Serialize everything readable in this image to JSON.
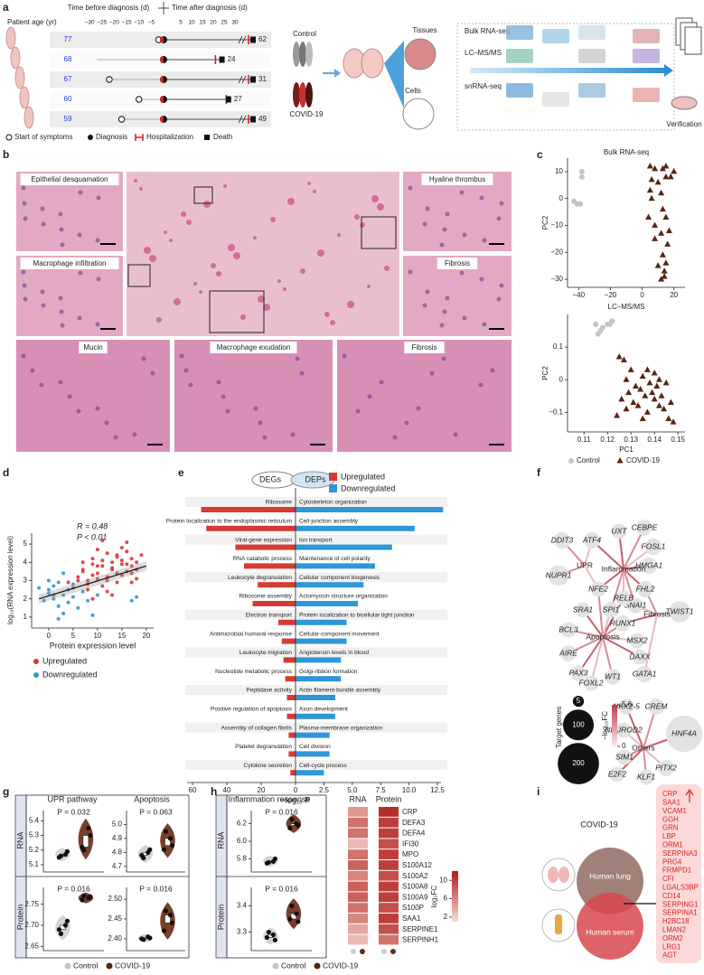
{
  "panel_labels": [
    "a",
    "b",
    "c",
    "d",
    "e",
    "f",
    "g",
    "h",
    "i"
  ],
  "a": {
    "time_before": "Time before diagnosis (d)",
    "time_after": "Time after diagnosis (d)",
    "age_label": "Patient age (yr)",
    "ticks_before": [
      {
        "value": -30,
        "label": "−30"
      },
      {
        "value": -25,
        "label": "−25"
      },
      {
        "value": -20,
        "label": "−20"
      },
      {
        "value": -15,
        "label": "−15"
      },
      {
        "value": -10,
        "label": "−10"
      },
      {
        "value": -5,
        "label": "−5"
      }
    ],
    "ticks_after": [
      5,
      10,
      15,
      20,
      25,
      30
    ],
    "patients": [
      {
        "age": 77,
        "symptom_onset": -2,
        "hospitalization": 60,
        "death": 62
      },
      {
        "age": 68,
        "symptom_onset": null,
        "hospitalization": 21,
        "death": 24
      },
      {
        "age": 67,
        "symptom_onset": -22,
        "hospitalization": 29,
        "death": 31
      },
      {
        "age": 60,
        "symptom_onset": -10,
        "hospitalization": 26,
        "death": 27
      },
      {
        "age": 59,
        "symptom_onset": -17,
        "hospitalization": 47,
        "death": 49
      }
    ],
    "legend": [
      "Start of symptoms",
      "Diagnosis",
      "Hospitalization",
      "Death"
    ],
    "groups": [
      "Control",
      "COVID-19"
    ],
    "samples": [
      "Tissues",
      "Cells"
    ],
    "methods": [
      "Bulk RNA-seq",
      "LC–MS/MS",
      "snRNA-seq"
    ],
    "verification": "Verification"
  },
  "b": {
    "labels": [
      "Epithelial desquamation",
      "Macrophage infiltration",
      "Hyaline thrombus",
      "Fibrosis",
      "Mucin",
      "Macrophage exudation",
      "Fibrosis"
    ]
  },
  "c": {
    "legend": [
      {
        "name": "Control",
        "color": "#c4c4c4"
      },
      {
        "name": "COVID-19",
        "color": "#5a2414"
      }
    ],
    "plots": [
      {
        "type": "scatter",
        "title": "Bulk RNA-seq",
        "ylabel": "PC2",
        "xlim": [
          -47,
          27
        ],
        "ylim": [
          -33,
          15
        ],
        "xticks": [
          {
            "value": -40,
            "label": "−40"
          },
          {
            "value": -20,
            "label": "−20"
          },
          0,
          20
        ],
        "yticks": [
          {
            "value": -30,
            "label": "−30"
          },
          {
            "value": -20,
            "label": "−20"
          },
          {
            "value": -10,
            "label": "−10"
          },
          0,
          10
        ],
        "control": {
          "x": [
            -38,
            -38,
            -43,
            -41,
            -39
          ],
          "values": [
            10,
            8,
            -1,
            -2,
            -2
          ]
        },
        "covid": {
          "x": [
            5,
            8,
            13,
            15,
            20,
            6,
            10,
            15,
            18,
            5,
            6,
            12,
            13,
            4,
            8,
            15,
            17,
            8,
            12,
            16,
            13,
            15,
            10,
            14,
            14,
            12
          ],
          "values": [
            12,
            11,
            11,
            8,
            10,
            7,
            6,
            12,
            8,
            3,
            0,
            2,
            -4,
            -7,
            -10,
            -7,
            -12,
            -15,
            -13,
            -17,
            -21,
            -24,
            -25,
            -27,
            -29,
            -30
          ]
        }
      },
      {
        "type": "scatter",
        "title": "LC–MS/MS",
        "xlabel": "PC1",
        "ylabel": "PC2",
        "xlim": [
          0.103,
          0.153
        ],
        "ylim": [
          -0.16,
          0.2
        ],
        "xticks": [
          0.11,
          0.12,
          0.13,
          0.14,
          0.15
        ],
        "yticks": [
          {
            "value": -0.1,
            "label": "−0.1"
          },
          0,
          0.1
        ],
        "control": {
          "x": [
            0.115,
            0.118,
            0.12,
            0.122,
            0.117,
            0.121,
            0.116
          ],
          "values": [
            0.17,
            0.16,
            0.17,
            0.18,
            0.15,
            0.17,
            0.14
          ]
        },
        "covid": {
          "x": [
            0.125,
            0.127,
            0.13,
            0.128,
            0.132,
            0.135,
            0.137,
            0.14,
            0.142,
            0.138,
            0.134,
            0.129,
            0.126,
            0.131,
            0.136,
            0.139,
            0.141,
            0.143,
            0.145,
            0.147,
            0.133,
            0.137,
            0.14,
            0.144,
            0.146,
            0.128,
            0.124,
            0.135,
            0.142,
            0.148
          ],
          "values": [
            0.07,
            0.06,
            0.03,
            0.0,
            -0.02,
            0.01,
            0.03,
            0.02,
            0.0,
            -0.01,
            -0.03,
            -0.04,
            -0.06,
            -0.07,
            -0.05,
            -0.04,
            -0.02,
            -0.05,
            -0.01,
            -0.07,
            -0.08,
            -0.1,
            -0.06,
            -0.09,
            -0.12,
            -0.09,
            -0.11,
            -0.12,
            -0.08,
            -0.13
          ]
        }
      }
    ]
  },
  "d": {
    "type": "scatter",
    "xlabel": "Protein expression level",
    "ylabel": "log₁₀(RNA expression level)",
    "r_text": "R = 0.48",
    "p_text": "P < 0.01",
    "xlim": [
      -3.5,
      21.5
    ],
    "ylim": [
      0.4,
      5.6
    ],
    "xticks": [
      0,
      5,
      10,
      15,
      20
    ],
    "yticks": [
      1,
      2,
      3,
      4,
      5
    ],
    "fit": {
      "x": [
        -2,
        20
      ],
      "values": [
        2.0,
        3.8
      ]
    },
    "series": [
      {
        "name": "Upregulated",
        "color": "#d73a35",
        "x": [
          6,
          7,
          8,
          9,
          10,
          11,
          12,
          13,
          14,
          15,
          16,
          17,
          18,
          8,
          9,
          10,
          11,
          12,
          13,
          14,
          15,
          16,
          17,
          5,
          6,
          7,
          9,
          10,
          11,
          12,
          13,
          14,
          15,
          16,
          17,
          18,
          19,
          7,
          8,
          10,
          12,
          14,
          16,
          18,
          11,
          13,
          15,
          17,
          9,
          4
        ],
        "values": [
          3.2,
          3.5,
          2.8,
          3.9,
          3.4,
          4.1,
          3.0,
          3.7,
          4.3,
          3.3,
          4.6,
          3.8,
          4.0,
          2.5,
          4.2,
          3.1,
          2.7,
          4.5,
          3.6,
          2.9,
          4.8,
          3.5,
          4.2,
          2.6,
          3.0,
          4.0,
          3.3,
          4.7,
          3.8,
          2.4,
          4.0,
          3.4,
          3.9,
          5.1,
          2.9,
          3.6,
          4.4,
          3.6,
          3.0,
          3.8,
          3.2,
          4.4,
          3.9,
          3.1,
          5.2,
          2.2,
          4.1,
          3.4,
          2.0,
          2.9
        ]
      },
      {
        "name": "Downregulated",
        "color": "#2f96d8",
        "x": [
          -2,
          -1,
          0,
          0,
          1,
          1,
          2,
          2,
          3,
          3,
          4,
          4,
          5,
          5,
          6,
          7,
          8,
          9,
          10,
          2,
          0,
          1,
          3,
          17,
          18
        ],
        "values": [
          2.6,
          1.9,
          2.3,
          3.0,
          2.0,
          2.7,
          1.6,
          2.9,
          2.2,
          1.2,
          2.5,
          1.8,
          2.8,
          2.1,
          1.5,
          2.4,
          1.9,
          1.1,
          2.2,
          0.9,
          2.5,
          2.2,
          3.4,
          1.9,
          2.1
        ]
      }
    ]
  },
  "e": {
    "type": "bar",
    "left_header": "DEGs",
    "right_header": "DEPs",
    "xlabel": "−log₁₀ P",
    "legend": [
      {
        "name": "Upregulated",
        "color": "#d73a35"
      },
      {
        "name": "Downregulated",
        "color": "#2f96d8"
      }
    ],
    "left_xlim": [
      0,
      60
    ],
    "left_xticks": [
      60,
      40,
      20,
      0
    ],
    "right_xlim": [
      0,
      12.5
    ],
    "right_xticks": [
      2.5,
      {
        "value": 5,
        "label": "5.0"
      },
      7.5,
      {
        "value": 10,
        "label": "10.0"
      },
      12.5
    ],
    "left_categories": [
      "Ribosome",
      "Protein localization to the endoplasmic reticulum",
      "Viral-gene expression",
      "RNA catabolic process",
      "Leukocyte degranulation",
      "Ribosome assembly",
      "Electron transport",
      "Antimicrobial humoral response",
      "Leukocyte migration",
      "Nucleotide metabolic process",
      "Peptidase activity",
      "Positive regulation of apoptosis",
      "Assembly of collagen fibrils",
      "Platelet degranulation",
      "Cytokine secretion"
    ],
    "left_values": [
      55,
      52,
      35,
      30,
      22,
      25,
      10,
      8,
      7,
      6,
      5,
      5,
      4,
      4,
      3
    ],
    "right_categories": [
      "Cytoskeleton organization",
      "Cell-junction assembly",
      "Ion transport",
      "Maintenance of cell polarity",
      "Cellular component biogenesis",
      "Actomyosin structure organization",
      "Protein localization to bicellular tight junction",
      "Cellular-component movement",
      "Angiotensin levels in blood",
      "Golgi-ribbon formation",
      "Actin filament-bundle assembly",
      "Axon development",
      "Plasma-membrane organization",
      "Cell division",
      "Cell-cycle process"
    ],
    "right_values": [
      13,
      10.5,
      8.5,
      7,
      6,
      5.5,
      4.5,
      4.5,
      4,
      4,
      3.5,
      3.5,
      3,
      3,
      2.5
    ]
  },
  "f": {
    "hubs": [
      "UPR",
      "Inflammation",
      "Fibrosis",
      "Apoptosis",
      "Others"
    ],
    "nodes": [
      {
        "label": "DDIT3",
        "targets": 20,
        "links": [
          "UPR"
        ]
      },
      {
        "label": "ATF4",
        "targets": 18,
        "links": [
          "UPR",
          "Inflammation"
        ]
      },
      {
        "label": "UXT",
        "targets": 15,
        "links": [
          "Inflammation"
        ]
      },
      {
        "label": "CEBPE",
        "targets": 18,
        "links": [
          "Inflammation"
        ]
      },
      {
        "label": "FOSL1",
        "targets": 20,
        "links": [
          "Inflammation"
        ]
      },
      {
        "label": "HMGA1",
        "targets": 18,
        "links": [
          "Inflammation"
        ]
      },
      {
        "label": "NUPR1",
        "targets": 35,
        "links": [
          "UPR"
        ]
      },
      {
        "label": "NFE2",
        "targets": 15,
        "links": [
          "UPR",
          "Inflammation",
          "Apoptosis"
        ]
      },
      {
        "label": "FHL2",
        "targets": 18,
        "links": [
          "Inflammation",
          "Fibrosis"
        ]
      },
      {
        "label": "SNAI1",
        "targets": 16,
        "links": [
          "Inflammation",
          "Fibrosis"
        ]
      },
      {
        "label": "RELB",
        "targets": 15,
        "links": [
          "Inflammation",
          "Apoptosis"
        ]
      },
      {
        "label": "SRA1",
        "targets": 15,
        "links": [
          "Apoptosis"
        ]
      },
      {
        "label": "SPI1",
        "targets": 18,
        "links": [
          "Inflammation",
          "Apoptosis"
        ]
      },
      {
        "label": "TWIST1",
        "targets": 40,
        "links": [
          "Fibrosis"
        ]
      },
      {
        "label": "RUNX1",
        "targets": 18,
        "links": [
          "Fibrosis",
          "Apoptosis"
        ]
      },
      {
        "label": "BCL3",
        "targets": 15,
        "links": [
          "Apoptosis"
        ]
      },
      {
        "label": "MSX2",
        "targets": 15,
        "links": [
          "Apoptosis"
        ]
      },
      {
        "label": "DAXX",
        "targets": 15,
        "links": [
          "Apoptosis"
        ]
      },
      {
        "label": "AIRE",
        "targets": 18,
        "links": [
          "Apoptosis"
        ]
      },
      {
        "label": "GATA1",
        "targets": 20,
        "links": [
          "Fibrosis"
        ]
      },
      {
        "label": "PAX3",
        "targets": 16,
        "links": [
          "Apoptosis"
        ]
      },
      {
        "label": "WT1",
        "targets": 16,
        "links": [
          "Apoptosis"
        ]
      },
      {
        "label": "FOXL2",
        "targets": 16,
        "links": [
          "Apoptosis"
        ]
      },
      {
        "label": "NKX2-5",
        "targets": 16,
        "links": [
          "Others"
        ]
      },
      {
        "label": "CREM",
        "targets": 18,
        "links": [
          "Others"
        ]
      },
      {
        "label": "NEUROD2",
        "targets": 15,
        "links": [
          "Others"
        ]
      },
      {
        "label": "HNF4A",
        "targets": 150,
        "links": [
          "Others"
        ]
      },
      {
        "label": "SIM1",
        "targets": 15,
        "links": [
          "Others"
        ]
      },
      {
        "label": "PITX2",
        "targets": 18,
        "links": [
          "Others"
        ]
      },
      {
        "label": "E2F2",
        "targets": 15,
        "links": [
          "Others"
        ]
      },
      {
        "label": "KLF1",
        "targets": 16,
        "links": [
          "Others"
        ]
      }
    ],
    "size_legend_title": "Target genes",
    "size_legend": [
      5,
      100,
      200
    ],
    "color_legend_title": "−log₁₀FC",
    "color_legend": [
      5.6,
      0
    ]
  },
  "g": {
    "titles": [
      "UPR pathway",
      "Apoptosis"
    ],
    "rows": [
      "RNA",
      "Protein"
    ],
    "legend": [
      {
        "name": "Control",
        "color": "#c4c4c4"
      },
      {
        "name": "COVID-19",
        "color": "#5a2414"
      }
    ],
    "plots": [
      {
        "p": "P = 0.032",
        "ylim": [
          5.05,
          5.47
        ],
        "yticks": [
          5.1,
          5.2,
          5.3,
          5.4
        ],
        "control": [
          5.15,
          5.17,
          5.16,
          5.19
        ],
        "covid": [
          5.22,
          5.35,
          5.2,
          5.3
        ]
      },
      {
        "p": "P = 0.063",
        "ylim": [
          4.66,
          5.1
        ],
        "yticks": [
          4.7,
          4.8,
          4.9,
          {
            "value": 5,
            "label": "5.0"
          }
        ],
        "control": [
          4.78,
          4.8,
          4.76,
          4.82
        ],
        "covid": [
          4.82,
          4.9,
          4.95,
          4.85
        ]
      },
      {
        "p": "P = 0.016",
        "ylim": [
          2.64,
          2.79
        ],
        "yticks": [
          2.65,
          {
            "value": 2.7,
            "label": "2.70"
          },
          2.75
        ],
        "control": [
          2.69,
          2.7,
          2.68,
          2.71
        ],
        "covid": [
          2.76,
          2.765,
          2.77,
          2.768
        ]
      },
      {
        "p": "P = 0.016",
        "ylim": [
          2.37,
          2.53
        ],
        "yticks": [
          {
            "value": 2.4,
            "label": "2.40"
          },
          2.45,
          {
            "value": 2.5,
            "label": "2.50"
          }
        ],
        "control": [
          2.4,
          2.405,
          2.398,
          2.402
        ],
        "covid": [
          2.42,
          2.46,
          2.47,
          2.44
        ]
      }
    ]
  },
  "h": {
    "title": "Inflammation response",
    "rows": [
      "RNA",
      "Protein"
    ],
    "legend": [
      {
        "name": "Control",
        "color": "#c4c4c4"
      },
      {
        "name": "COVID-19",
        "color": "#5a2414"
      }
    ],
    "plots": [
      {
        "p": "P = 0.016",
        "ylim": [
          5.65,
          6.35
        ],
        "yticks": [
          5.8,
          {
            "value": 6,
            "label": "6.0"
          },
          6.2
        ],
        "control": [
          5.75,
          5.77,
          5.76,
          5.8
        ],
        "covid": [
          6.15,
          6.2,
          6.25,
          6.18
        ]
      },
      {
        "p": "P = 0.016",
        "ylim": [
          3.23,
          3.47
        ],
        "yticks": [
          3.3,
          3.4
        ],
        "control": [
          3.28,
          3.29,
          3.3,
          3.27
        ],
        "covid": [
          3.35,
          3.37,
          3.4,
          3.34
        ]
      }
    ],
    "heatmap": {
      "type": "heatmap",
      "columns": [
        "RNA",
        "Protein"
      ],
      "genes": [
        "CRP",
        "DEFA3",
        "DEFA4",
        "IFI30",
        "MPO",
        "S100A12",
        "S100A2",
        "S100A8",
        "S100A9",
        "S100P",
        "SAA1",
        "SERPINE1",
        "SERPINH1"
      ],
      "rna": [
        5,
        7,
        7,
        3,
        7,
        8,
        6,
        8,
        8,
        7,
        6,
        4,
        3
      ],
      "protein": [
        11,
        10,
        10,
        9,
        10,
        10,
        9,
        10,
        10,
        9,
        10,
        9,
        7
      ],
      "clim": [
        1,
        12
      ],
      "cticks": [
        10,
        6,
        2
      ],
      "clabel": "log₂FC"
    }
  },
  "i": {
    "title": "COVID-19",
    "lung": "Human lung",
    "serum": "Human serum",
    "genes": [
      "CRP",
      "SAA1",
      "VCAM1",
      "GGH",
      "GRN",
      "LBP",
      "ORM1",
      "SERPINA3",
      "PRG4",
      "FRMPD1",
      "CFI",
      "LGALS3BP",
      "CD14",
      "SERPING1",
      "SERPINA1",
      "H2BC18",
      "LMAN2",
      "ORM2",
      "LRG1",
      "AGT"
    ]
  }
}
